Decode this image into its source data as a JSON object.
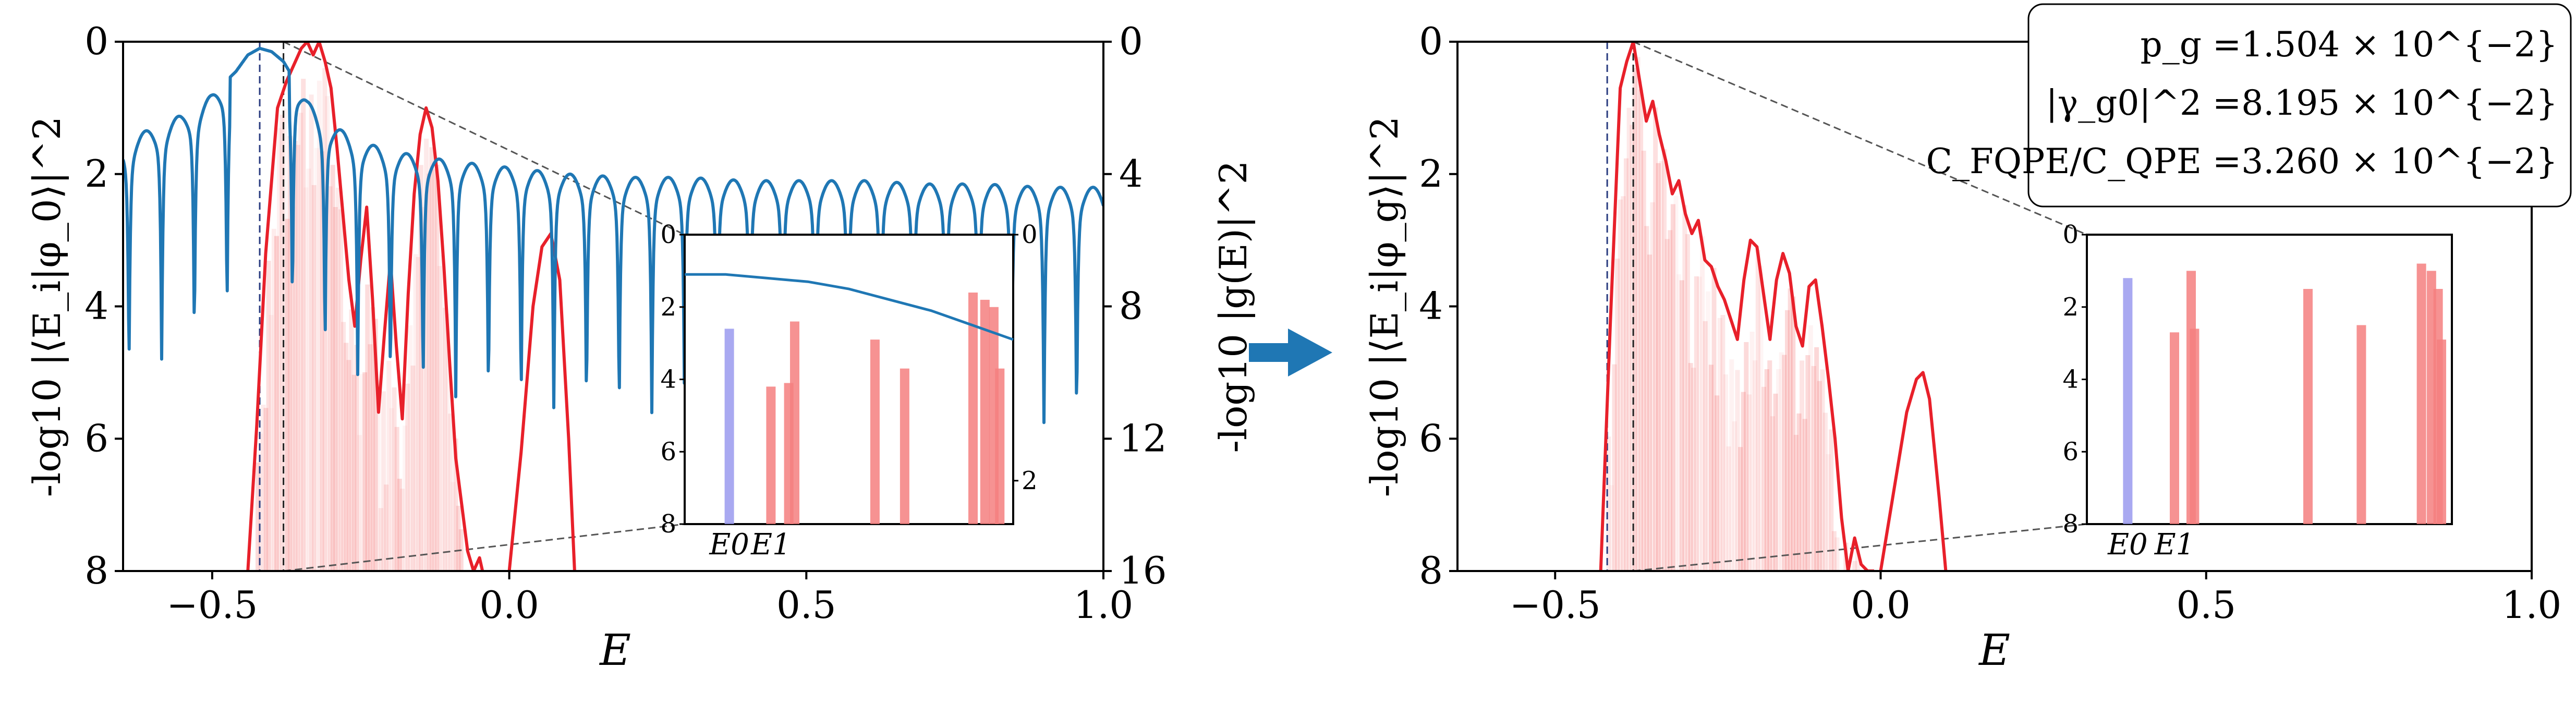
{
  "chart_data": [
    {
      "panel": "left",
      "type": "line",
      "xlabel": "E",
      "ylabel": "-log10 |⟨E_i|φ_0⟩|^2",
      "ylabel_right": "-log10 |g(E)|^2",
      "xlim": [
        -0.65,
        1.0
      ],
      "ylim": [
        8,
        0
      ],
      "ylim_right": [
        16,
        0
      ],
      "xticks": [
        "−0.5",
        "0.0",
        "0.5",
        "1.0"
      ],
      "yticks": [
        "0",
        "2",
        "4",
        "6",
        "8"
      ],
      "yticks_right": [
        "0",
        "4",
        "8",
        "12",
        "16"
      ],
      "vlines": [
        -0.42,
        -0.38
      ],
      "series": [
        {
          "color": "#e8202a",
          "axis": "left",
          "x": [
            -0.44,
            -0.425,
            -0.41,
            -0.39,
            -0.375,
            -0.36,
            -0.35,
            -0.34,
            -0.33,
            -0.32,
            -0.31,
            -0.3,
            -0.29,
            -0.28,
            -0.27,
            -0.26,
            -0.25,
            -0.24,
            -0.23,
            -0.22,
            -0.21,
            -0.2,
            -0.19,
            -0.18,
            -0.17,
            -0.16,
            -0.15,
            -0.14,
            -0.13,
            -0.12,
            -0.11,
            -0.1,
            -0.09,
            -0.08,
            -0.07,
            -0.06,
            -0.05,
            -0.045
          ],
          "y": [
            8.0,
            5.8,
            3.2,
            1.0,
            0.6,
            0.3,
            0.1,
            0.0,
            0.2,
            0.0,
            0.3,
            0.7,
            1.6,
            2.6,
            3.6,
            4.3,
            3.3,
            2.5,
            3.9,
            5.6,
            4.4,
            3.3,
            4.6,
            5.7,
            3.8,
            2.3,
            1.4,
            1.0,
            1.3,
            2.1,
            3.4,
            4.9,
            6.3,
            7.0,
            7.7,
            8.0,
            7.8,
            8.0
          ]
        },
        {
          "color": "#e8202a",
          "axis": "left",
          "x": [
            0.0,
            0.02,
            0.04,
            0.055,
            0.07,
            0.085,
            0.1,
            0.11
          ],
          "y": [
            8.0,
            6.2,
            4.0,
            3.1,
            2.9,
            3.6,
            6.0,
            8.0
          ]
        },
        {
          "color": "#1f77b4",
          "axis": "right",
          "x": [
            -0.65,
            -0.6,
            -0.55,
            -0.5,
            -0.46,
            -0.44,
            -0.42,
            -0.4,
            -0.38,
            -0.36,
            -0.34,
            -0.3,
            -0.25,
            -0.2,
            -0.1,
            0.0,
            0.1,
            0.2,
            0.3,
            0.4,
            0.5,
            0.6,
            0.7,
            0.8,
            0.9,
            1.0
          ],
          "y": [
            3.0,
            2.6,
            2.2,
            1.6,
            0.9,
            0.4,
            0.2,
            0.3,
            0.6,
            1.2,
            1.8,
            2.5,
            3.0,
            3.3,
            3.6,
            3.8,
            4.0,
            4.1,
            4.1,
            4.2,
            4.2,
            4.2,
            4.3,
            4.3,
            4.4,
            4.4
          ]
        }
      ],
      "inset": {
        "xlabels": [
          "E_0",
          "E_1"
        ],
        "yticks": [
          "0",
          "2",
          "4",
          "6",
          "8"
        ],
        "yticks_right": [
          "0",
          "2"
        ],
        "bars": [
          {
            "x": 0.08,
            "y": 2.6,
            "color": "#9a9aee"
          },
          {
            "x": 0.22,
            "y": 4.2,
            "color": "#f47f7f"
          },
          {
            "x": 0.28,
            "y": 4.1,
            "color": "#f47f7f"
          },
          {
            "x": 0.3,
            "y": 2.4,
            "color": "#f47f7f"
          },
          {
            "x": 0.57,
            "y": 2.9,
            "color": "#f47f7f"
          },
          {
            "x": 0.67,
            "y": 3.7,
            "color": "#f47f7f"
          },
          {
            "x": 0.9,
            "y": 1.6,
            "color": "#f47f7f"
          },
          {
            "x": 0.94,
            "y": 1.8,
            "color": "#f47f7f"
          },
          {
            "x": 0.97,
            "y": 2.0,
            "color": "#f47f7f"
          },
          {
            "x": 0.99,
            "y": 3.7,
            "color": "#f47f7f"
          }
        ],
        "curve_y": [
          1.1,
          1.1,
          1.2,
          1.3,
          1.5,
          1.8,
          2.1,
          2.5,
          2.9
        ]
      }
    },
    {
      "panel": "right",
      "type": "line",
      "xlabel": "E",
      "ylabel": "-log10 |⟨E_i|φ_g⟩|^2",
      "xlim": [
        -0.65,
        1.0
      ],
      "ylim": [
        8,
        0
      ],
      "xticks": [
        "−0.5",
        "0.0",
        "0.5",
        "1.0"
      ],
      "yticks": [
        "0",
        "2",
        "4",
        "6",
        "8"
      ],
      "vlines": [
        -0.42,
        -0.38
      ],
      "series": [
        {
          "color": "#e8202a",
          "x": [
            -0.43,
            -0.415,
            -0.4,
            -0.39,
            -0.38,
            -0.37,
            -0.36,
            -0.35,
            -0.34,
            -0.33,
            -0.32,
            -0.31,
            -0.3,
            -0.29,
            -0.28,
            -0.27,
            -0.26,
            -0.25,
            -0.24,
            -0.23,
            -0.22,
            -0.21,
            -0.2,
            -0.19,
            -0.18,
            -0.17,
            -0.16,
            -0.15,
            -0.14,
            -0.13,
            -0.12,
            -0.11,
            -0.1,
            -0.09,
            -0.08,
            -0.07,
            -0.06,
            -0.05,
            -0.04,
            -0.03,
            -0.02,
            -0.01
          ],
          "y": [
            8.0,
            4.2,
            0.7,
            0.3,
            0.0,
            0.6,
            1.2,
            0.9,
            1.4,
            1.8,
            2.3,
            2.1,
            2.6,
            2.9,
            2.7,
            3.3,
            3.4,
            3.7,
            3.9,
            4.2,
            4.5,
            3.6,
            3.0,
            3.1,
            3.8,
            4.5,
            3.6,
            3.2,
            3.5,
            4.3,
            4.6,
            3.7,
            3.6,
            4.3,
            5.1,
            6.0,
            7.2,
            8.0,
            7.5,
            7.9,
            8.0,
            8.0
          ]
        },
        {
          "color": "#e8202a",
          "x": [
            0.0,
            0.02,
            0.04,
            0.055,
            0.065,
            0.075,
            0.09,
            0.1
          ],
          "y": [
            8.0,
            6.8,
            5.6,
            5.1,
            5.0,
            5.4,
            6.9,
            8.0
          ]
        }
      ],
      "inset": {
        "xlabels": [
          "E_0",
          "E_1"
        ],
        "yticks": [
          "0",
          "2",
          "4",
          "6",
          "8"
        ],
        "bars": [
          {
            "x": 0.06,
            "y": 1.2,
            "color": "#9a9aee"
          },
          {
            "x": 0.2,
            "y": 2.7,
            "color": "#f47f7f"
          },
          {
            "x": 0.25,
            "y": 1.0,
            "color": "#f47f7f"
          },
          {
            "x": 0.26,
            "y": 2.6,
            "color": "#f47f7f"
          },
          {
            "x": 0.6,
            "y": 1.5,
            "color": "#f47f7f"
          },
          {
            "x": 0.76,
            "y": 2.5,
            "color": "#f47f7f"
          },
          {
            "x": 0.94,
            "y": 0.8,
            "color": "#f47f7f"
          },
          {
            "x": 0.97,
            "y": 1.0,
            "color": "#f47f7f"
          },
          {
            "x": 0.99,
            "y": 1.5,
            "color": "#f47f7f"
          },
          {
            "x": 1.0,
            "y": 2.9,
            "color": "#f47f7f"
          }
        ]
      },
      "annotations": [
        {
          "label": "p_g",
          "value": "=1.504 × 10^{−2}"
        },
        {
          "label": "|γ_g0|^2",
          "value": "=8.195 × 10^{−2}"
        },
        {
          "label": "C_FQPE/C_QPE",
          "value": "=3.260 × 10^{−2}"
        }
      ]
    }
  ],
  "arrow_color": "#1f77b4"
}
